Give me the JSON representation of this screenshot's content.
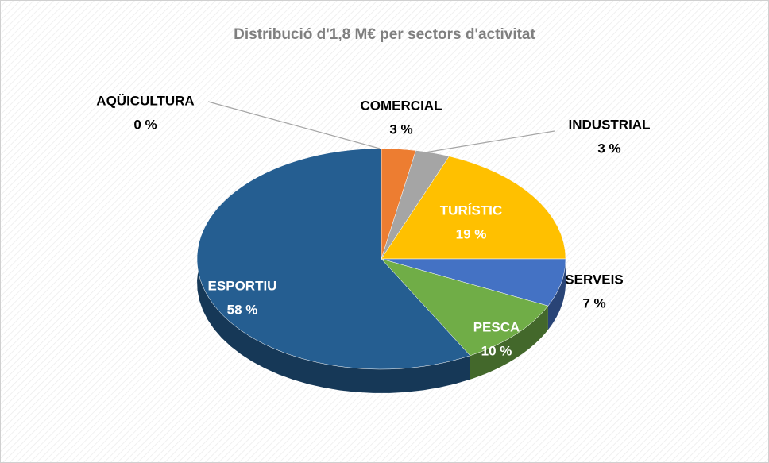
{
  "chart_data": {
    "type": "pie",
    "title": "Distribució d'1,8 M€ per sectors d'activitat",
    "categories": [
      "AQÜICULTURA",
      "COMERCIAL",
      "INDUSTRIAL",
      "TURÍSTIC",
      "SERVEIS",
      "PESCA",
      "ESPORTIU"
    ],
    "values": [
      0,
      3,
      3,
      19,
      7,
      10,
      58
    ],
    "value_labels": [
      "0 %",
      "3 %",
      "3 %",
      "19 %",
      "7 %",
      "10 %",
      "58 %"
    ],
    "colors": [
      "#5b9bd5",
      "#ed7d31",
      "#a5a5a5",
      "#ffc000",
      "#4472c4",
      "#70ad47",
      "#255e91"
    ]
  }
}
